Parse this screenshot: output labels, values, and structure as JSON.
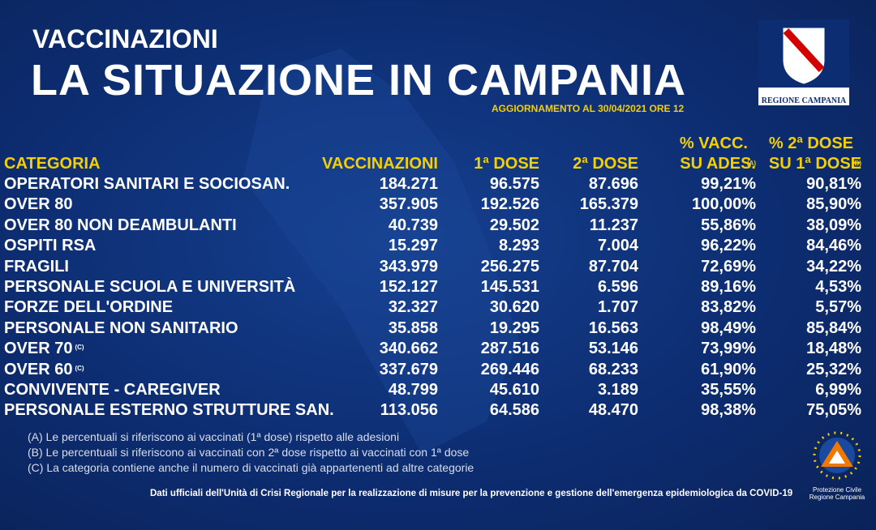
{
  "header": {
    "kicker": "VACCINAZIONI",
    "title": "LA SITUAZIONE IN CAMPANIA",
    "update": "AGGIORNAMENTO AL 30/04/2021 ORE 12",
    "logo_text": "REGIONE CAMPANIA"
  },
  "table": {
    "columns": [
      {
        "lines": [
          "CATEGORIA"
        ]
      },
      {
        "lines": [
          "VACCINAZIONI"
        ]
      },
      {
        "lines": [
          "1ª DOSE"
        ]
      },
      {
        "lines": [
          "2ª DOSE"
        ]
      },
      {
        "lines": [
          "% VACC.",
          "SU ADES."
        ],
        "mark": "(A)"
      },
      {
        "lines": [
          "% 2ª DOSE",
          "SU 1ª DOSE"
        ],
        "mark": "(B)"
      }
    ],
    "rows": [
      {
        "category": "OPERATORI SANITARI E SOCIOSAN.",
        "values": [
          "184.271",
          "96.575",
          "87.696",
          "99,21%",
          "90,81%"
        ]
      },
      {
        "category": "OVER 80",
        "values": [
          "357.905",
          "192.526",
          "165.379",
          "100,00%",
          "85,90%"
        ]
      },
      {
        "category": "OVER 80 NON DEAMBULANTI",
        "values": [
          "40.739",
          "29.502",
          "11.237",
          "55,86%",
          "38,09%"
        ]
      },
      {
        "category": "OSPITI RSA",
        "values": [
          "15.297",
          "8.293",
          "7.004",
          "96,22%",
          "84,46%"
        ]
      },
      {
        "category": "FRAGILI",
        "values": [
          "343.979",
          "256.275",
          "87.704",
          "72,69%",
          "34,22%"
        ]
      },
      {
        "category": "PERSONALE SCUOLA E UNIVERSITÀ",
        "values": [
          "152.127",
          "145.531",
          "6.596",
          "89,16%",
          "4,53%"
        ]
      },
      {
        "category": "FORZE DELL'ORDINE",
        "values": [
          "32.327",
          "30.620",
          "1.707",
          "83,82%",
          "5,57%"
        ]
      },
      {
        "category": "PERSONALE NON SANITARIO",
        "values": [
          "35.858",
          "19.295",
          "16.563",
          "98,49%",
          "85,84%"
        ]
      },
      {
        "category": "OVER 70",
        "mark": "(C)",
        "values": [
          "340.662",
          "287.516",
          "53.146",
          "73,99%",
          "18,48%"
        ]
      },
      {
        "category": "OVER 60",
        "mark": "(C)",
        "values": [
          "337.679",
          "269.446",
          "68.233",
          "61,90%",
          "25,32%"
        ]
      },
      {
        "category": "CONVIVENTE - CAREGIVER",
        "values": [
          "48.799",
          "45.610",
          "3.189",
          "35,55%",
          "6,99%"
        ]
      },
      {
        "category": "PERSONALE ESTERNO STRUTTURE SAN.",
        "values": [
          "113.056",
          "64.586",
          "48.470",
          "98,38%",
          "75,05%"
        ]
      }
    ]
  },
  "notes": [
    "(A) Le percentuali si riferiscono ai vaccinati (1ª dose) rispetto alle adesioni",
    "(B) Le percentuali si riferiscono ai vaccinati con 2ª dose rispetto ai vaccinati con 1ª dose",
    "(C) La categoria contiene anche il numero di vaccinati già appartenenti ad altre categorie"
  ],
  "footer": "Dati ufficiali dell'Unità di Crisi Regionale per la realizzazione di misure per la prevenzione e gestione dell'emergenza epidemiologica da COVID-19",
  "civil_logo": [
    "Protezione Civile",
    "Regione Campania"
  ]
}
